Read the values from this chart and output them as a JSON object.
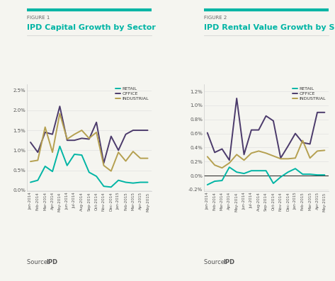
{
  "months": [
    "Jan-2014",
    "Feb-2014",
    "Mar-2014",
    "Apr-2014",
    "May-2014",
    "Jun-2014",
    "Jul-2014",
    "Aug-2014",
    "Sep-2014",
    "Oct-2014",
    "Nov-2014",
    "Dec-2014",
    "Jan-2015",
    "Feb-2015",
    "Mar-2015",
    "Apr-2015",
    "May-2015"
  ],
  "fig1": {
    "title_label": "FIGURE 1",
    "title": "IPD Capital Growth by Sector",
    "retail": [
      0.002,
      0.0025,
      0.006,
      0.0047,
      0.011,
      0.0062,
      0.009,
      0.0088,
      0.0045,
      0.0035,
      0.001,
      0.0008,
      0.0025,
      0.002,
      0.0018,
      0.002,
      0.002
    ],
    "office": [
      0.012,
      0.0095,
      0.0145,
      0.014,
      0.021,
      0.0125,
      0.0125,
      0.013,
      0.0128,
      0.017,
      0.0068,
      0.0135,
      0.01,
      0.014,
      0.015,
      0.015,
      0.015
    ],
    "industrial": [
      0.0072,
      0.0075,
      0.0158,
      0.0095,
      0.0192,
      0.0128,
      0.014,
      0.015,
      0.013,
      0.0145,
      0.0062,
      0.0048,
      0.0095,
      0.0073,
      0.0097,
      0.008,
      0.008
    ],
    "ylim": [
      -0.0002,
      0.0265
    ],
    "yticks": [
      0.0,
      0.005,
      0.01,
      0.015,
      0.02,
      0.025
    ],
    "ytick_labels": [
      "0.0%",
      "0.5%",
      "1.0%",
      "1.5%",
      "2.0%",
      "2.5%"
    ]
  },
  "fig2": {
    "title_label": "FIGURE 2",
    "title": "IPD Rental Value Growth by Sector",
    "retail": [
      -0.0013,
      -0.0008,
      -0.0007,
      0.0012,
      0.0005,
      0.0003,
      0.0007,
      0.0007,
      0.0007,
      -0.0011,
      -0.0002,
      0.0005,
      0.001,
      0.0002,
      0.0002,
      0.0001,
      0.0001
    ],
    "office": [
      0.0061,
      0.0033,
      0.0038,
      0.0022,
      0.011,
      0.003,
      0.0065,
      0.0065,
      0.0085,
      0.0078,
      0.0025,
      0.0042,
      0.006,
      0.0047,
      0.0045,
      0.009,
      0.009
    ],
    "industrial": [
      0.0027,
      0.0015,
      0.0011,
      0.0018,
      0.003,
      0.0022,
      0.0032,
      0.0035,
      0.0032,
      0.0028,
      0.0024,
      0.0024,
      0.0025,
      0.005,
      0.0025,
      0.0035,
      0.0036
    ],
    "ylim": [
      -0.0022,
      0.013
    ],
    "yticks": [
      -0.002,
      0.0,
      0.002,
      0.004,
      0.006,
      0.008,
      0.01,
      0.012
    ],
    "ytick_labels": [
      "-0.2%",
      "0.0%",
      "0.2%",
      "0.4%",
      "0.6%",
      "0.8%",
      "1.0%",
      "1.2%"
    ]
  },
  "colors": {
    "retail": "#00B5A5",
    "office": "#4B3A6B",
    "industrial": "#B5A050",
    "teal_bar": "#00B5A5",
    "figure_label": "#666666",
    "title_color": "#00B5A5",
    "source_label": "#555555",
    "bg": "#F5F5F0",
    "zero_line": "#333333",
    "grid": "#dddddd",
    "spine": "#cccccc"
  },
  "source_text_plain": "Source: ",
  "source_text_bold": "IPD",
  "linewidth": 1.4
}
